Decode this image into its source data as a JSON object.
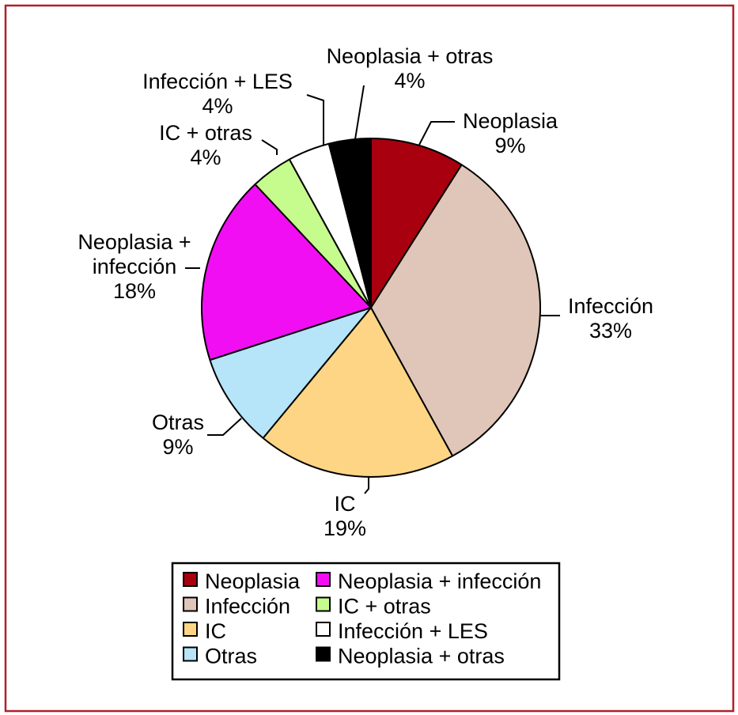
{
  "chart_data": {
    "type": "pie",
    "start_angle_deg": 0,
    "direction": "clockwise",
    "slices": [
      {
        "name": "Neoplasia",
        "value": 9,
        "label": "9%",
        "color": "#a8000e"
      },
      {
        "name": "Infección",
        "value": 33,
        "label": "33%",
        "color": "#dfc6b8"
      },
      {
        "name": "IC",
        "value": 19,
        "label": "19%",
        "color": "#fdd584"
      },
      {
        "name": "Otras",
        "value": 9,
        "label": "9%",
        "color": "#b6e4f8"
      },
      {
        "name": "Neoplasia + infección",
        "value": 18,
        "label": "18%",
        "color": "#f20ef2"
      },
      {
        "name": "IC + otras",
        "value": 4,
        "label": "4%",
        "color": "#c6fb8d"
      },
      {
        "name": "Infección + LES",
        "value": 4,
        "label": "4%",
        "color": "#ffffff"
      },
      {
        "name": "Neoplasia + otras",
        "value": 4,
        "label": "4%",
        "color": "#000000"
      }
    ],
    "callout_lines": {
      "Neoplasia": [
        "Neoplasia",
        "9%"
      ],
      "Infección": [
        "Infección",
        "33%"
      ],
      "IC": [
        "IC",
        "19%"
      ],
      "Otras": [
        "Otras",
        "9%"
      ],
      "Neoplasia + infección": [
        "Neoplasia +",
        "infección",
        "18%"
      ],
      "IC + otras": [
        "IC + otras",
        "4%"
      ],
      "Infección + LES": [
        "Infección + LES",
        "4%"
      ],
      "Neoplasia + otras": [
        "Neoplasia + otras",
        "4%"
      ]
    },
    "legend": {
      "columns": [
        [
          "Neoplasia",
          "Infección",
          "IC",
          "Otras"
        ],
        [
          "Neoplasia + infección",
          "IC + otras",
          "Infección + LES",
          "Neoplasia + otras"
        ]
      ],
      "placement": "bottom"
    },
    "border_color": "#b0202a"
  }
}
